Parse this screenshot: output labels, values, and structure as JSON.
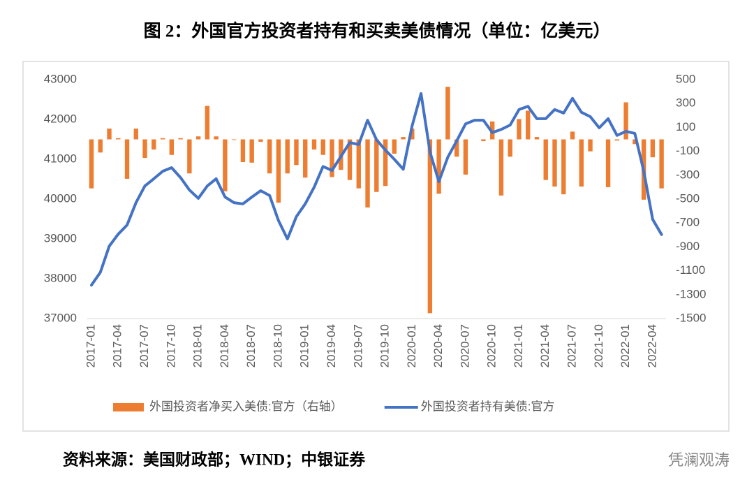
{
  "chart_data": {
    "type": "bar-line",
    "title": "图 2：外国官方投资者持有和买卖美债情况（单位：亿美元）",
    "source": "资料来源：美国财政部；WIND；中银证券",
    "watermark": "凭澜观涛",
    "categories": [
      "2017-01",
      null,
      null,
      "2017-04",
      null,
      null,
      "2017-07",
      null,
      null,
      "2017-10",
      null,
      null,
      "2018-01",
      null,
      null,
      "2018-04",
      null,
      null,
      "2018-07",
      null,
      null,
      "2018-10",
      null,
      null,
      "2019-01",
      null,
      null,
      "2019-04",
      null,
      null,
      "2019-07",
      null,
      null,
      "2019-10",
      null,
      null,
      "2020-01",
      null,
      null,
      "2020-04",
      null,
      null,
      "2020-07",
      null,
      null,
      "2020-10",
      null,
      null,
      "2021-01",
      null,
      null,
      "2021-04",
      null,
      null,
      "2021-07",
      null,
      null,
      "2021-10",
      null,
      null,
      "2022-01",
      null,
      null,
      "2022-04",
      null
    ],
    "series": [
      {
        "name": "外国投资者净买入美债:官方（右轴）",
        "type": "bar",
        "axis": "y2",
        "color": "#ed7d31",
        "values": [
          -410,
          -110,
          90,
          10,
          -330,
          90,
          -155,
          -85,
          10,
          -130,
          10,
          -285,
          25,
          280,
          25,
          -435,
          -5,
          -190,
          -195,
          -20,
          -285,
          -530,
          -285,
          -215,
          -320,
          -85,
          -130,
          -315,
          -255,
          -340,
          -410,
          -570,
          -440,
          -390,
          -120,
          20,
          90,
          0,
          -1455,
          -455,
          440,
          -145,
          -295,
          0,
          -15,
          150,
          -470,
          -145,
          170,
          240,
          20,
          -340,
          -395,
          -460,
          65,
          -395,
          -100,
          0,
          -400,
          -10,
          310,
          -40,
          -505,
          -150,
          -410
        ]
      },
      {
        "name": "外国投资者持有美债:官方",
        "type": "line",
        "color": "#4472c4",
        "values": [
          37840,
          38160,
          38820,
          39120,
          39350,
          39910,
          40330,
          40510,
          40700,
          40790,
          40540,
          40230,
          40020,
          40330,
          40510,
          40050,
          39910,
          39880,
          40050,
          40210,
          40090,
          39460,
          39000,
          39560,
          39880,
          40300,
          40820,
          40720,
          41070,
          41420,
          41370,
          41980,
          41490,
          41230,
          41000,
          40750,
          41840,
          42650,
          41180,
          40440,
          41050,
          41460,
          41890,
          41980,
          41980,
          41670,
          41750,
          41860,
          42250,
          42330,
          42020,
          42020,
          42250,
          42160,
          42530,
          42180,
          42070,
          41790,
          42020,
          41600,
          41700,
          41650,
          40700,
          39490,
          39110
        ]
      }
    ],
    "ylim": [
      37000,
      43000
    ],
    "yticks": [
      37000,
      38000,
      39000,
      40000,
      41000,
      42000,
      43000
    ],
    "y2lim": [
      -1500,
      500
    ],
    "y2ticks": [
      -1500,
      -1300,
      -1100,
      -900,
      -700,
      -500,
      -300,
      -100,
      100,
      300,
      500
    ]
  }
}
